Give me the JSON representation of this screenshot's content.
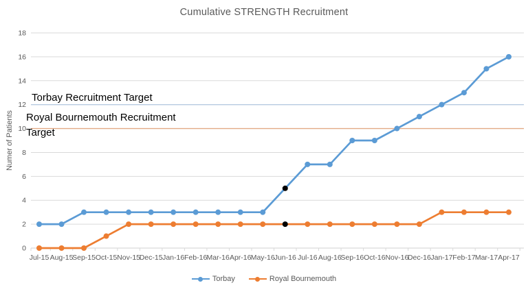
{
  "chart_data": {
    "type": "line",
    "title": "Cumulative STRENGTH Recruitment",
    "xlabel": "",
    "ylabel": "Numer of Patients",
    "ylim": [
      0,
      18
    ],
    "ytick_step": 2,
    "grid": true,
    "legend_position": "bottom",
    "categories": [
      "Jul-15",
      "Aug-15",
      "Sep-15",
      "Oct-15",
      "Nov-15",
      "Dec-15",
      "Jan-16",
      "Feb-16",
      "Mar-16",
      "Apr-16",
      "May-16",
      "Jun-16",
      "Jul-16",
      "Aug-16",
      "Sep-16",
      "Oct-16",
      "Nov-16",
      "Dec-16",
      "Jan-17",
      "Feb-17",
      "Mar-17",
      "Apr-17"
    ],
    "series": [
      {
        "name": "Torbay",
        "color": "#5B9BD5",
        "values": [
          2,
          2,
          3,
          3,
          3,
          3,
          3,
          3,
          3,
          3,
          3,
          5,
          7,
          7,
          9,
          9,
          10,
          11,
          12,
          13,
          15,
          16
        ]
      },
      {
        "name": "Royal Bournemouth",
        "color": "#ED7D31",
        "values": [
          0,
          0,
          0,
          1,
          2,
          2,
          2,
          2,
          2,
          2,
          2,
          2,
          2,
          2,
          2,
          2,
          2,
          2,
          3,
          3,
          3,
          3
        ]
      }
    ],
    "highlight": {
      "category": "Jun-16",
      "marker_color": "#000000"
    },
    "targets": [
      {
        "label": "Torbay Recruitment Target",
        "value": 12,
        "color": "#B7CBE1"
      },
      {
        "label": "Royal Bournemouth Recruitment Target",
        "value": 10,
        "color": "#E2A985"
      }
    ],
    "colors": {
      "axis_text": "#595959",
      "gridline": "#D9D9D9",
      "axis_line": "#D0D0D0",
      "annotation_text": "#000000",
      "title_text": "#595959"
    }
  }
}
